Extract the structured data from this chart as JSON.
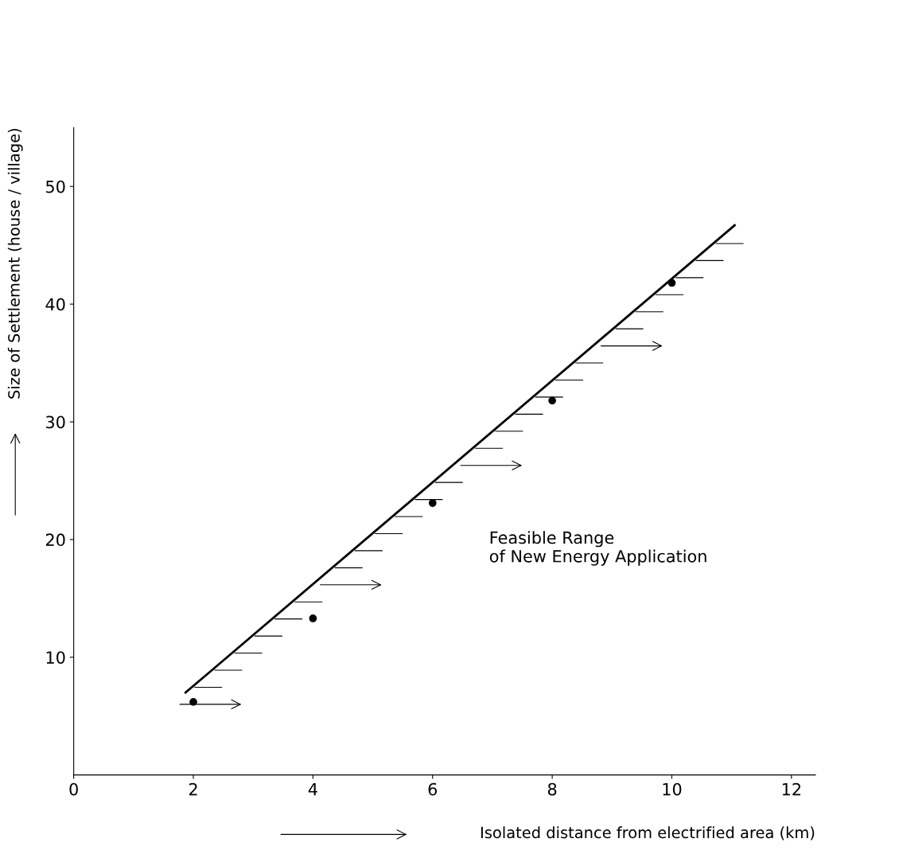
{
  "chart_data": {
    "type": "scatter",
    "xlabel": "Isolated distance from electrified area (km)",
    "ylabel": "Size of Settlement (house / village)",
    "xlim": [
      0,
      12.4
    ],
    "ylim": [
      0,
      55
    ],
    "xticks": [
      0,
      2,
      4,
      6,
      8,
      10,
      12
    ],
    "yticks": [
      10,
      20,
      30,
      40,
      50
    ],
    "grid": false,
    "annotations": [
      "Feasible Range\nof New Energy Application"
    ],
    "series": [
      {
        "color": "#000000",
        "marker": "circle",
        "x": [
          2,
          4,
          6,
          8,
          10
        ],
        "values": [
          6.2,
          13.3,
          23.1,
          31.8,
          41.8
        ]
      },
      {
        "type": "line",
        "color": "#000000",
        "marker": "none",
        "line_style": "solid",
        "x": [
          1.87,
          11.05
        ],
        "values": [
          7.0,
          46.7
        ]
      }
    ]
  }
}
